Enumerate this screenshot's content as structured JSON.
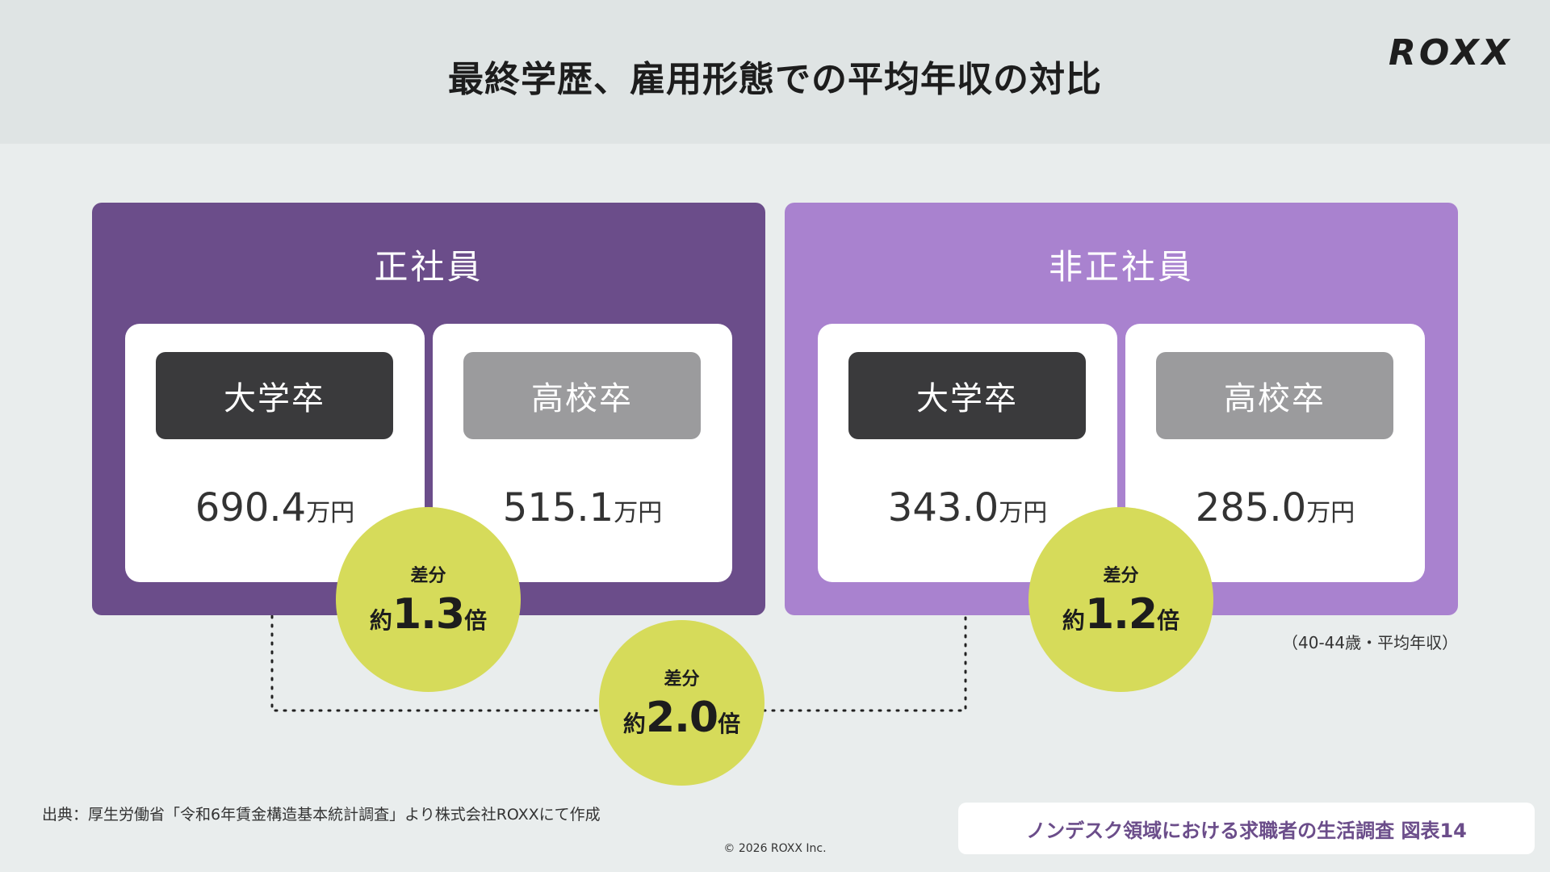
{
  "header": {
    "title": "最終学歴、雇用形態での平均年収の対比",
    "logo": "ROXX"
  },
  "panels": [
    {
      "title": "正社員",
      "cards": [
        {
          "label": "大学卒",
          "value": "690.4",
          "unit": "万円"
        },
        {
          "label": "高校卒",
          "value": "515.1",
          "unit": "万円"
        }
      ],
      "diff": {
        "label": "差分",
        "prefix": "約",
        "ratio": "1.3",
        "suffix": "倍"
      }
    },
    {
      "title": "非正社員",
      "cards": [
        {
          "label": "大学卒",
          "value": "343.0",
          "unit": "万円"
        },
        {
          "label": "高校卒",
          "value": "285.0",
          "unit": "万円"
        }
      ],
      "diff": {
        "label": "差分",
        "prefix": "約",
        "ratio": "1.2",
        "suffix": "倍"
      }
    }
  ],
  "cross_diff": {
    "label": "差分",
    "prefix": "約",
    "ratio": "2.0",
    "suffix": "倍"
  },
  "note": "（40-44歳・平均年収）",
  "source": "出典：厚生労働省「令和6年賃金構造基本統計調査」より株式会社ROXXにて作成",
  "footer_label": "ノンデスク領域における求職者の生活調査 図表14",
  "copyright": "© 2026 ROXX Inc.",
  "colors": {
    "panel_regular": "#6b4d8a",
    "panel_nonregular": "#a982cf",
    "badge_university": "#3a3a3c",
    "badge_highschool": "#9b9b9d",
    "diff_circle": "#d6db5a"
  }
}
